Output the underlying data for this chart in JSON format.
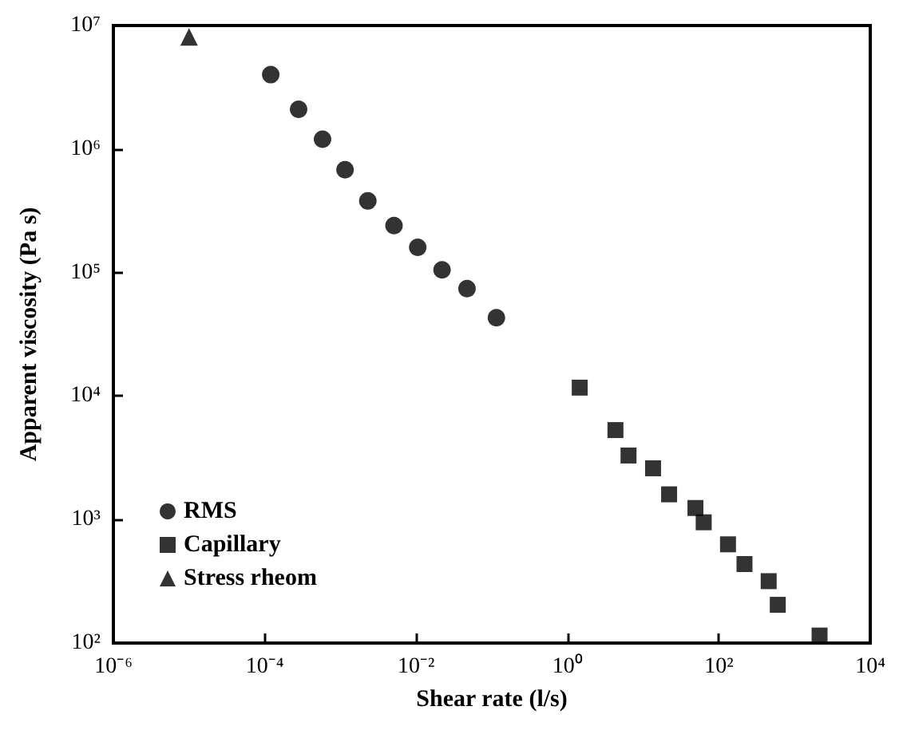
{
  "chart_data": {
    "type": "scatter",
    "xlabel": "Shear rate (l/s)",
    "ylabel": "Apparent viscosity (Pa s)",
    "log": "xy",
    "grid": false,
    "legend": "bottom left",
    "xlim": [
      1e-06,
      10000
    ],
    "ylim": [
      100,
      10000000
    ],
    "xticks": [
      {
        "value": 1e-06,
        "label": "10⁻⁶"
      },
      {
        "value": 0.0001,
        "label": "10⁻⁴"
      },
      {
        "value": 0.01,
        "label": "10⁻²"
      },
      {
        "value": 1,
        "label": "10⁰"
      },
      {
        "value": 100,
        "label": "10²"
      },
      {
        "value": 10000,
        "label": "10⁴"
      }
    ],
    "yticks": [
      {
        "value": 100,
        "label": "10²"
      },
      {
        "value": 1000,
        "label": "10³"
      },
      {
        "value": 10000,
        "label": "10⁴"
      },
      {
        "value": 100000,
        "label": "10⁵"
      },
      {
        "value": 1000000,
        "label": "10⁶"
      },
      {
        "value": 10000000,
        "label": "10⁷"
      }
    ],
    "series": [
      {
        "name": "RMS",
        "color": "#000000",
        "marker": "circle",
        "x": [
          0.00012,
          0.00028,
          0.00058,
          0.00115,
          0.0023,
          0.0051,
          0.0105,
          0.022,
          0.047,
          0.115
        ],
        "values": [
          4000000,
          2100000,
          1200000,
          680000,
          380000,
          240000,
          160000,
          105000,
          74000,
          43000
        ]
      },
      {
        "name": "Capillary",
        "color": "#000000",
        "marker": "square",
        "x": [
          1.45,
          4.3,
          6.4,
          13.5,
          22,
          49,
          63,
          132,
          218,
          455,
          600,
          2140
        ],
        "values": [
          11700,
          5300,
          3300,
          2600,
          1600,
          1240,
          950,
          630,
          436,
          317,
          204,
          115
        ]
      },
      {
        "name": "Stress rheom",
        "color": "#000000",
        "marker": "triangle",
        "x": [
          1e-05
        ],
        "values": [
          8100000
        ]
      }
    ]
  }
}
